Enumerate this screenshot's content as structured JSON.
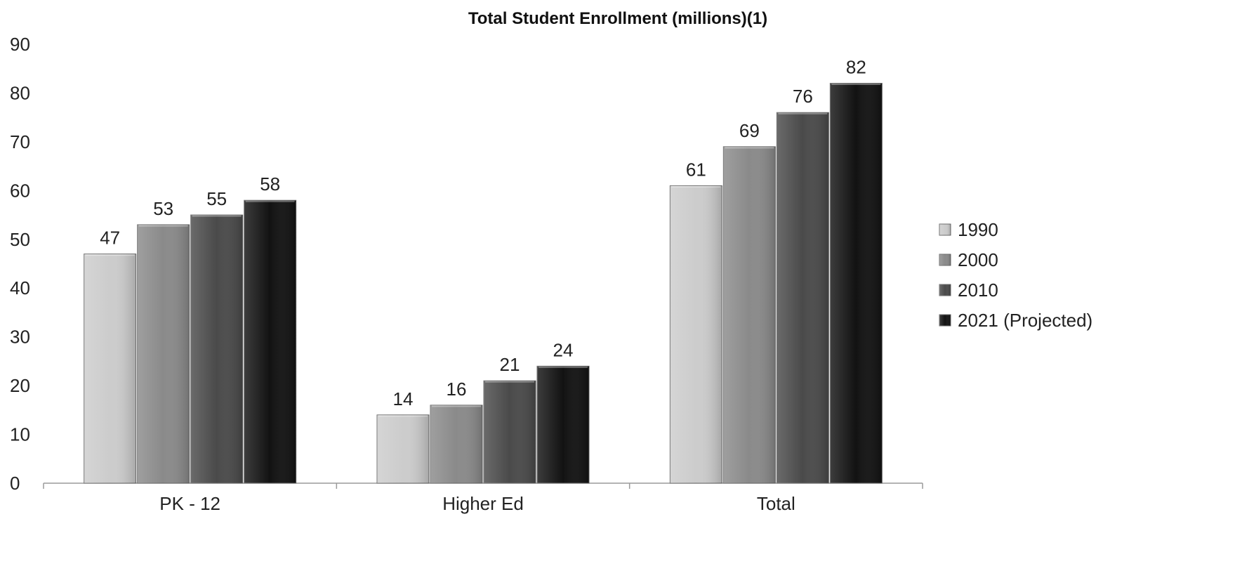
{
  "chart_data": {
    "type": "bar",
    "title": "Total Student Enrollment (millions)(1)",
    "xlabel": "",
    "ylabel": "",
    "categories": [
      "PK - 12",
      "Higher Ed",
      "Total"
    ],
    "series": [
      {
        "name": "1990",
        "values": [
          47,
          14,
          61
        ],
        "color": "#cccccc"
      },
      {
        "name": "2000",
        "values": [
          53,
          16,
          69
        ],
        "color": "#8a8a8a"
      },
      {
        "name": "2010",
        "values": [
          55,
          21,
          76
        ],
        "color": "#4a4a4a"
      },
      {
        "name": "2021 (Projected)",
        "values": [
          58,
          24,
          82
        ],
        "color": "#121212"
      }
    ],
    "ylim": [
      0,
      90
    ],
    "yticks": [
      0,
      10,
      20,
      30,
      40,
      50,
      60,
      70,
      80,
      90
    ],
    "grid": false,
    "legend_position": "right",
    "data_labels": true
  }
}
